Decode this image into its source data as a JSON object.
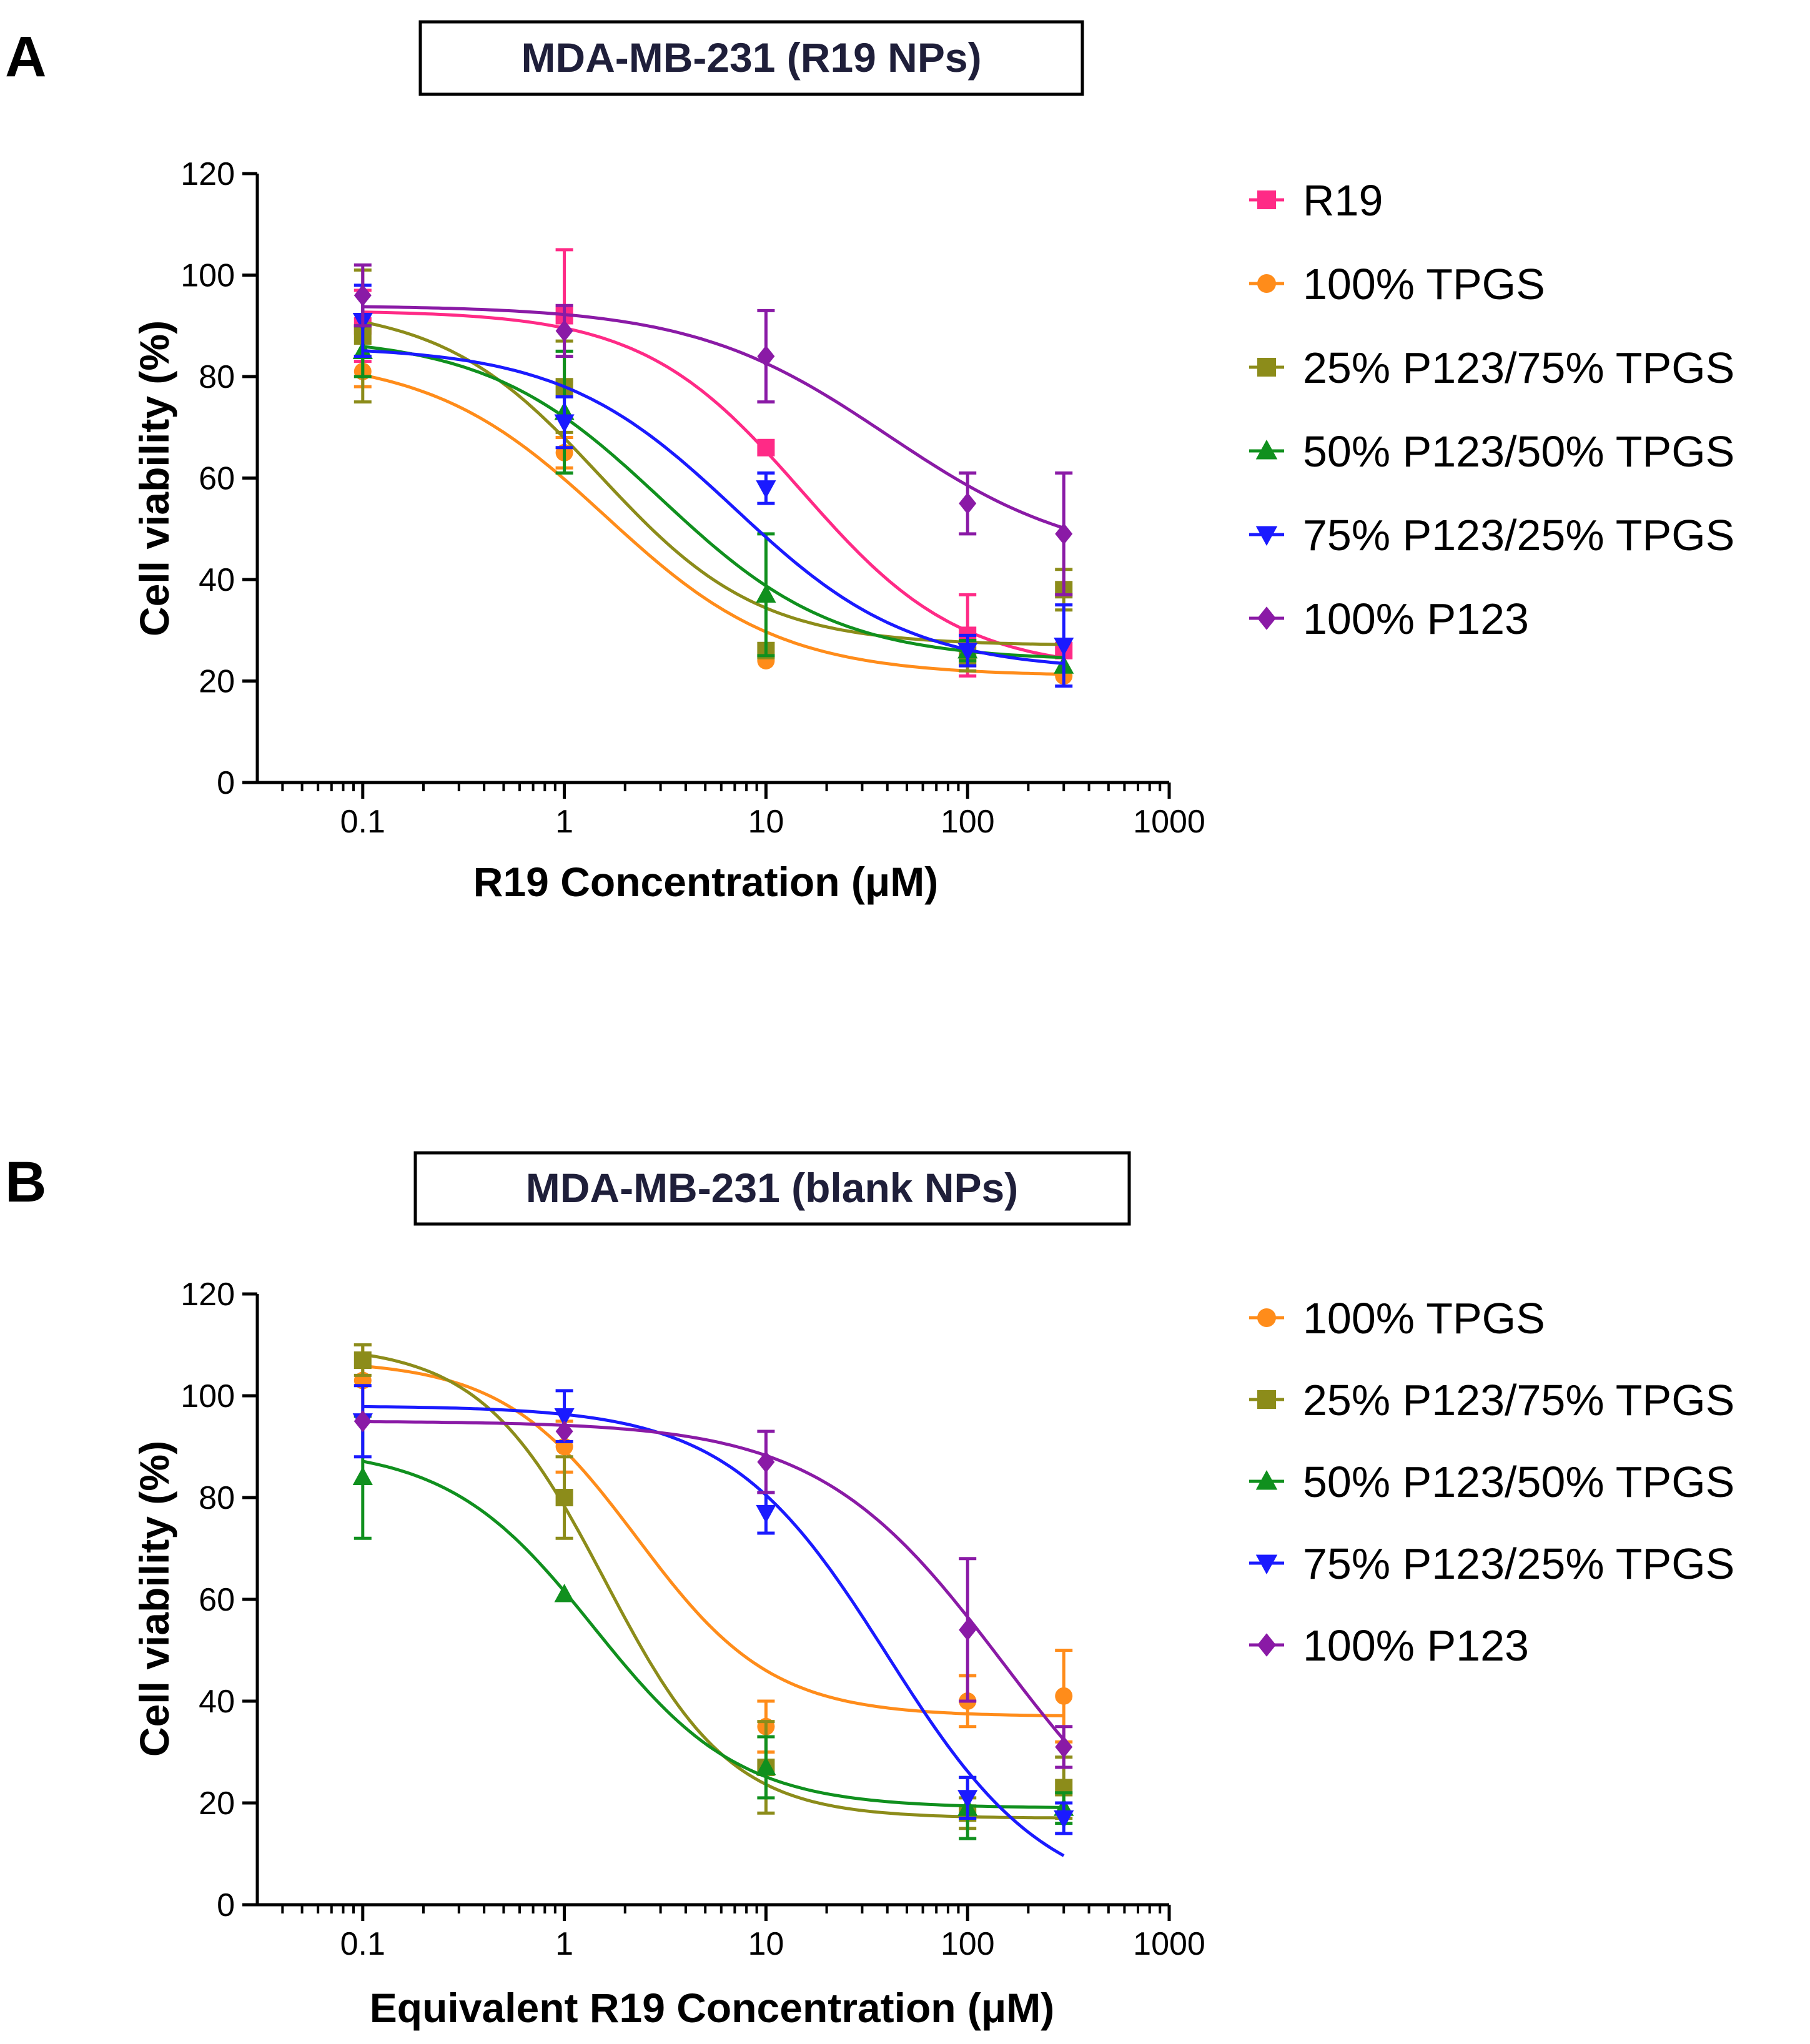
{
  "chart_data": [
    {
      "type": "scatter",
      "panel_label": "A",
      "title": "MDA-MB-231 (R19 NPs)",
      "xlabel": "R19 Concentration (μM)",
      "ylabel": "Cell viability (%)",
      "xscale": "log",
      "xlim": [
        0.03,
        1000
      ],
      "ylim": [
        0,
        120
      ],
      "xticks": [
        0.1,
        1,
        10,
        100,
        1000
      ],
      "xtick_labels": [
        "0.1",
        "1",
        "10",
        "100",
        "1000"
      ],
      "yticks": [
        0,
        20,
        40,
        60,
        80,
        100,
        120
      ],
      "ytick_labels": [
        "0",
        "20",
        "40",
        "60",
        "80",
        "100",
        "120"
      ],
      "legend_position": "right",
      "series": [
        {
          "name": "R19",
          "color": "#ff2a86",
          "marker": "square",
          "x": [
            0.1,
            1,
            10,
            100,
            300
          ],
          "y": [
            90,
            92,
            66,
            29,
            26
          ],
          "err": [
            7,
            13,
            0,
            8,
            0
          ],
          "fit": {
            "bottom": 22,
            "top": 93,
            "ec50": 15,
            "hill": 1.1
          }
        },
        {
          "name": "100% TPGS",
          "color": "#ff8c1a",
          "marker": "circle",
          "x": [
            0.1,
            1,
            10,
            100,
            300
          ],
          "y": [
            81,
            65,
            24,
            25,
            21
          ],
          "err": [
            3,
            3,
            0,
            2,
            0
          ],
          "fit": {
            "bottom": 21,
            "top": 84,
            "ec50": 1.6,
            "hill": 1.0
          }
        },
        {
          "name": "25% P123/75% TPGS",
          "color": "#8c8c1a",
          "marker": "square",
          "x": [
            0.1,
            1,
            10,
            100,
            300
          ],
          "y": [
            88,
            78,
            26,
            25,
            38
          ],
          "err": [
            13,
            9,
            0,
            3,
            4
          ],
          "fit": {
            "bottom": 27,
            "top": 94,
            "ec50": 1.5,
            "hill": 1.1
          }
        },
        {
          "name": "50% P123/50% TPGS",
          "color": "#10901e",
          "marker": "triangle-up",
          "x": [
            0.1,
            1,
            10,
            100,
            300
          ],
          "y": [
            85,
            73,
            37,
            26,
            23
          ],
          "err": [
            5,
            12,
            12,
            2,
            0
          ],
          "fit": {
            "bottom": 24,
            "top": 88,
            "ec50": 3.0,
            "hill": 1.0
          }
        },
        {
          "name": "75% P123/25% TPGS",
          "color": "#1a1aff",
          "marker": "triangle-down",
          "x": [
            0.1,
            1,
            10,
            100,
            300
          ],
          "y": [
            91,
            71,
            58,
            26,
            27
          ],
          "err": [
            7,
            5,
            3,
            3,
            8
          ],
          "fit": {
            "bottom": 22,
            "top": 86,
            "ec50": 7.0,
            "hill": 1.0
          }
        },
        {
          "name": "100% P123",
          "color": "#8a1aa6",
          "marker": "diamond",
          "x": [
            0.1,
            1,
            10,
            100,
            300
          ],
          "y": [
            96,
            89,
            84,
            55,
            49
          ],
          "err": [
            6,
            5,
            9,
            6,
            12
          ],
          "fit": {
            "bottom": 43,
            "top": 94,
            "ec50": 40,
            "hill": 0.9
          }
        }
      ]
    },
    {
      "type": "scatter",
      "panel_label": "B",
      "title": "MDA-MB-231 (blank NPs)",
      "xlabel": "Equivalent R19 Concentration (μM)",
      "ylabel": "Cell viability (%)",
      "xscale": "log",
      "xlim": [
        0.03,
        1000
      ],
      "ylim": [
        0,
        120
      ],
      "xticks": [
        0.1,
        1,
        10,
        100,
        1000
      ],
      "xtick_labels": [
        "0.1",
        "1",
        "10",
        "100",
        "1000"
      ],
      "yticks": [
        0,
        20,
        40,
        60,
        80,
        100,
        120
      ],
      "ytick_labels": [
        "0",
        "20",
        "40",
        "60",
        "80",
        "100",
        "120"
      ],
      "legend_position": "right",
      "series": [
        {
          "name": "100% TPGS",
          "color": "#ff8c1a",
          "marker": "circle",
          "x": [
            0.1,
            1,
            10,
            100,
            300
          ],
          "y": [
            103,
            90,
            35,
            40,
            41
          ],
          "err": [
            7,
            5,
            5,
            5,
            9
          ],
          "fit": {
            "bottom": 37,
            "top": 107,
            "ec50": 2.3,
            "hill": 1.3
          }
        },
        {
          "name": "25% P123/75% TPGS",
          "color": "#8c8c1a",
          "marker": "square",
          "x": [
            0.1,
            1,
            10,
            100,
            300
          ],
          "y": [
            107,
            80,
            27,
            18,
            23
          ],
          "err": [
            3,
            8,
            9,
            3,
            6
          ],
          "fit": {
            "bottom": 17,
            "top": 110,
            "ec50": 1.6,
            "hill": 1.4
          }
        },
        {
          "name": "50% P123/50% TPGS",
          "color": "#10901e",
          "marker": "triangle-up",
          "x": [
            0.1,
            1,
            10,
            100,
            300
          ],
          "y": [
            84,
            61,
            27,
            19,
            19
          ],
          "err": [
            12,
            0,
            6,
            6,
            3
          ],
          "fit": {
            "bottom": 19,
            "top": 90,
            "ec50": 1.4,
            "hill": 1.2
          }
        },
        {
          "name": "75% P123/25% TPGS",
          "color": "#1a1aff",
          "marker": "triangle-down",
          "x": [
            0.1,
            1,
            10,
            100,
            300
          ],
          "y": [
            95,
            96,
            77,
            21,
            17
          ],
          "err": [
            7,
            5,
            4,
            4,
            3
          ],
          "fit": {
            "bottom": 0,
            "top": 98,
            "ec50": 40,
            "hill": 1.1
          }
        },
        {
          "name": "100% P123",
          "color": "#8a1aa6",
          "marker": "diamond",
          "x": [
            0.1,
            1,
            10,
            100,
            300
          ],
          "y": [
            95,
            93,
            87,
            54,
            31
          ],
          "err": [
            0,
            0,
            6,
            14,
            4
          ],
          "fit": {
            "bottom": 0,
            "top": 95,
            "ec50": 150,
            "hill": 0.95
          }
        }
      ]
    }
  ]
}
